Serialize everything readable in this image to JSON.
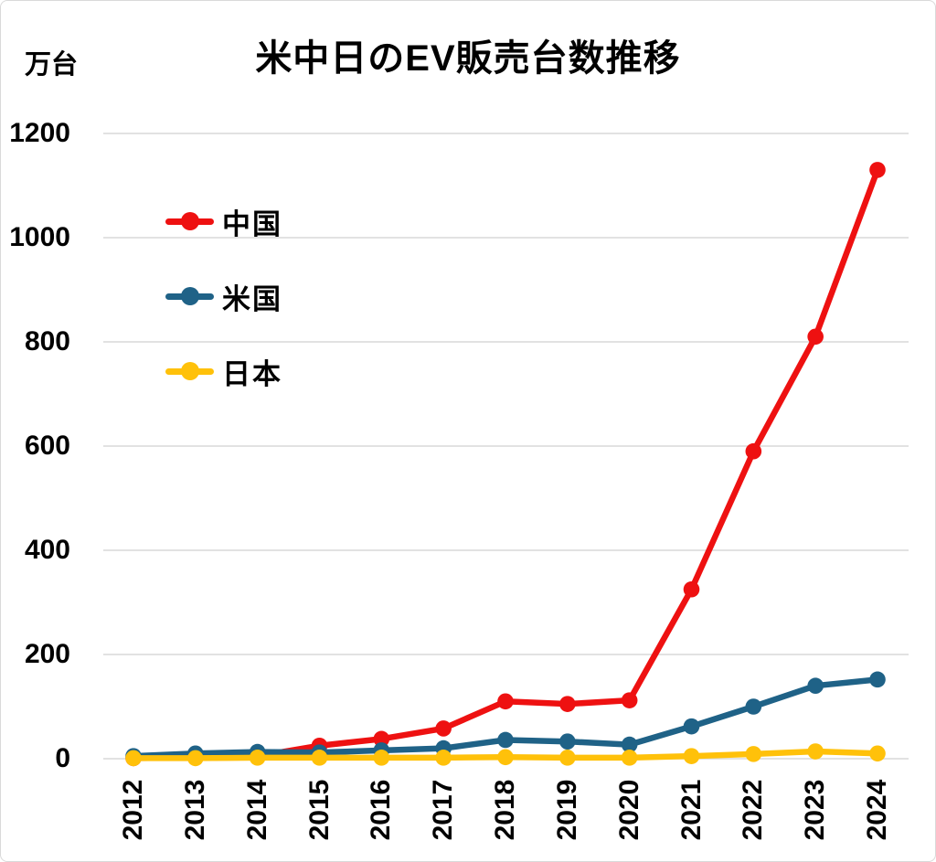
{
  "chart_data": {
    "type": "line",
    "title": "米中日のEV販売台数推移",
    "y_axis_unit": "万台",
    "xlabel": "",
    "ylabel": "万台",
    "x": [
      "2012",
      "2013",
      "2014",
      "2015",
      "2016",
      "2017",
      "2018",
      "2019",
      "2020",
      "2021",
      "2022",
      "2023",
      "2024"
    ],
    "series": [
      {
        "name": "中国",
        "color": "#ee1111",
        "values": [
          1,
          2,
          5,
          25,
          38,
          58,
          110,
          105,
          112,
          325,
          590,
          810,
          1130
        ]
      },
      {
        "name": "米国",
        "color": "#1f6287",
        "values": [
          5,
          10,
          13,
          12,
          16,
          20,
          36,
          33,
          27,
          62,
          100,
          140,
          152
        ]
      },
      {
        "name": "日本",
        "color": "#ffc10a",
        "values": [
          1,
          1,
          2,
          2,
          2,
          2,
          3,
          2,
          2,
          5,
          9,
          14,
          10
        ]
      }
    ],
    "yticks": [
      0,
      200,
      400,
      600,
      800,
      1000,
      1200
    ],
    "ylim": [
      0,
      1260
    ],
    "grid": true,
    "gridline_color": "#d9d9d9",
    "background": "#ffffff",
    "text_color": "#000000",
    "legend_position": "upper-left-inside",
    "marker": "circle"
  }
}
